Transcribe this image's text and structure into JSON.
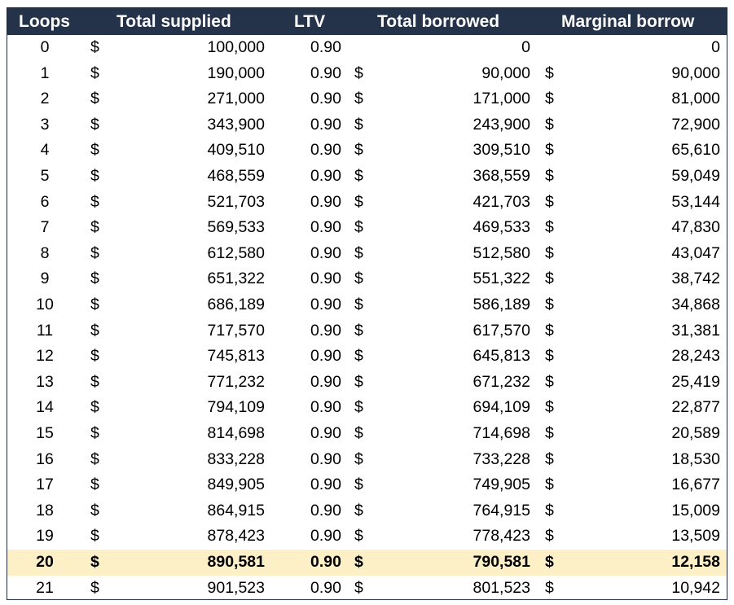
{
  "table": {
    "headers": {
      "loops": "Loops",
      "total_supplied": "Total supplied",
      "ltv": "LTV",
      "total_borrowed": "Total borrowed",
      "marginal_borrow": "Marginal borrow"
    },
    "colors": {
      "header_bg": "#25334a",
      "header_text": "#ffffff",
      "highlight_bg": "#fdefc6"
    },
    "highlight_row_index": 20,
    "rows": [
      {
        "loops": "0",
        "supplied_sym": "$",
        "supplied": "100,000",
        "ltv": "0.90",
        "borrowed_sym": "",
        "borrowed": "0",
        "marginal_sym": "",
        "marginal": "0"
      },
      {
        "loops": "1",
        "supplied_sym": "$",
        "supplied": "190,000",
        "ltv": "0.90",
        "borrowed_sym": "$",
        "borrowed": "90,000",
        "marginal_sym": "$",
        "marginal": "90,000"
      },
      {
        "loops": "2",
        "supplied_sym": "$",
        "supplied": "271,000",
        "ltv": "0.90",
        "borrowed_sym": "$",
        "borrowed": "171,000",
        "marginal_sym": "$",
        "marginal": "81,000"
      },
      {
        "loops": "3",
        "supplied_sym": "$",
        "supplied": "343,900",
        "ltv": "0.90",
        "borrowed_sym": "$",
        "borrowed": "243,900",
        "marginal_sym": "$",
        "marginal": "72,900"
      },
      {
        "loops": "4",
        "supplied_sym": "$",
        "supplied": "409,510",
        "ltv": "0.90",
        "borrowed_sym": "$",
        "borrowed": "309,510",
        "marginal_sym": "$",
        "marginal": "65,610"
      },
      {
        "loops": "5",
        "supplied_sym": "$",
        "supplied": "468,559",
        "ltv": "0.90",
        "borrowed_sym": "$",
        "borrowed": "368,559",
        "marginal_sym": "$",
        "marginal": "59,049"
      },
      {
        "loops": "6",
        "supplied_sym": "$",
        "supplied": "521,703",
        "ltv": "0.90",
        "borrowed_sym": "$",
        "borrowed": "421,703",
        "marginal_sym": "$",
        "marginal": "53,144"
      },
      {
        "loops": "7",
        "supplied_sym": "$",
        "supplied": "569,533",
        "ltv": "0.90",
        "borrowed_sym": "$",
        "borrowed": "469,533",
        "marginal_sym": "$",
        "marginal": "47,830"
      },
      {
        "loops": "8",
        "supplied_sym": "$",
        "supplied": "612,580",
        "ltv": "0.90",
        "borrowed_sym": "$",
        "borrowed": "512,580",
        "marginal_sym": "$",
        "marginal": "43,047"
      },
      {
        "loops": "9",
        "supplied_sym": "$",
        "supplied": "651,322",
        "ltv": "0.90",
        "borrowed_sym": "$",
        "borrowed": "551,322",
        "marginal_sym": "$",
        "marginal": "38,742"
      },
      {
        "loops": "10",
        "supplied_sym": "$",
        "supplied": "686,189",
        "ltv": "0.90",
        "borrowed_sym": "$",
        "borrowed": "586,189",
        "marginal_sym": "$",
        "marginal": "34,868"
      },
      {
        "loops": "11",
        "supplied_sym": "$",
        "supplied": "717,570",
        "ltv": "0.90",
        "borrowed_sym": "$",
        "borrowed": "617,570",
        "marginal_sym": "$",
        "marginal": "31,381"
      },
      {
        "loops": "12",
        "supplied_sym": "$",
        "supplied": "745,813",
        "ltv": "0.90",
        "borrowed_sym": "$",
        "borrowed": "645,813",
        "marginal_sym": "$",
        "marginal": "28,243"
      },
      {
        "loops": "13",
        "supplied_sym": "$",
        "supplied": "771,232",
        "ltv": "0.90",
        "borrowed_sym": "$",
        "borrowed": "671,232",
        "marginal_sym": "$",
        "marginal": "25,419"
      },
      {
        "loops": "14",
        "supplied_sym": "$",
        "supplied": "794,109",
        "ltv": "0.90",
        "borrowed_sym": "$",
        "borrowed": "694,109",
        "marginal_sym": "$",
        "marginal": "22,877"
      },
      {
        "loops": "15",
        "supplied_sym": "$",
        "supplied": "814,698",
        "ltv": "0.90",
        "borrowed_sym": "$",
        "borrowed": "714,698",
        "marginal_sym": "$",
        "marginal": "20,589"
      },
      {
        "loops": "16",
        "supplied_sym": "$",
        "supplied": "833,228",
        "ltv": "0.90",
        "borrowed_sym": "$",
        "borrowed": "733,228",
        "marginal_sym": "$",
        "marginal": "18,530"
      },
      {
        "loops": "17",
        "supplied_sym": "$",
        "supplied": "849,905",
        "ltv": "0.90",
        "borrowed_sym": "$",
        "borrowed": "749,905",
        "marginal_sym": "$",
        "marginal": "16,677"
      },
      {
        "loops": "18",
        "supplied_sym": "$",
        "supplied": "864,915",
        "ltv": "0.90",
        "borrowed_sym": "$",
        "borrowed": "764,915",
        "marginal_sym": "$",
        "marginal": "15,009"
      },
      {
        "loops": "19",
        "supplied_sym": "$",
        "supplied": "878,423",
        "ltv": "0.90",
        "borrowed_sym": "$",
        "borrowed": "778,423",
        "marginal_sym": "$",
        "marginal": "13,509"
      },
      {
        "loops": "20",
        "supplied_sym": "$",
        "supplied": "890,581",
        "ltv": "0.90",
        "borrowed_sym": "$",
        "borrowed": "790,581",
        "marginal_sym": "$",
        "marginal": "12,158"
      },
      {
        "loops": "21",
        "supplied_sym": "$",
        "supplied": "901,523",
        "ltv": "0.90",
        "borrowed_sym": "$",
        "borrowed": "801,523",
        "marginal_sym": "$",
        "marginal": "10,942"
      }
    ]
  }
}
